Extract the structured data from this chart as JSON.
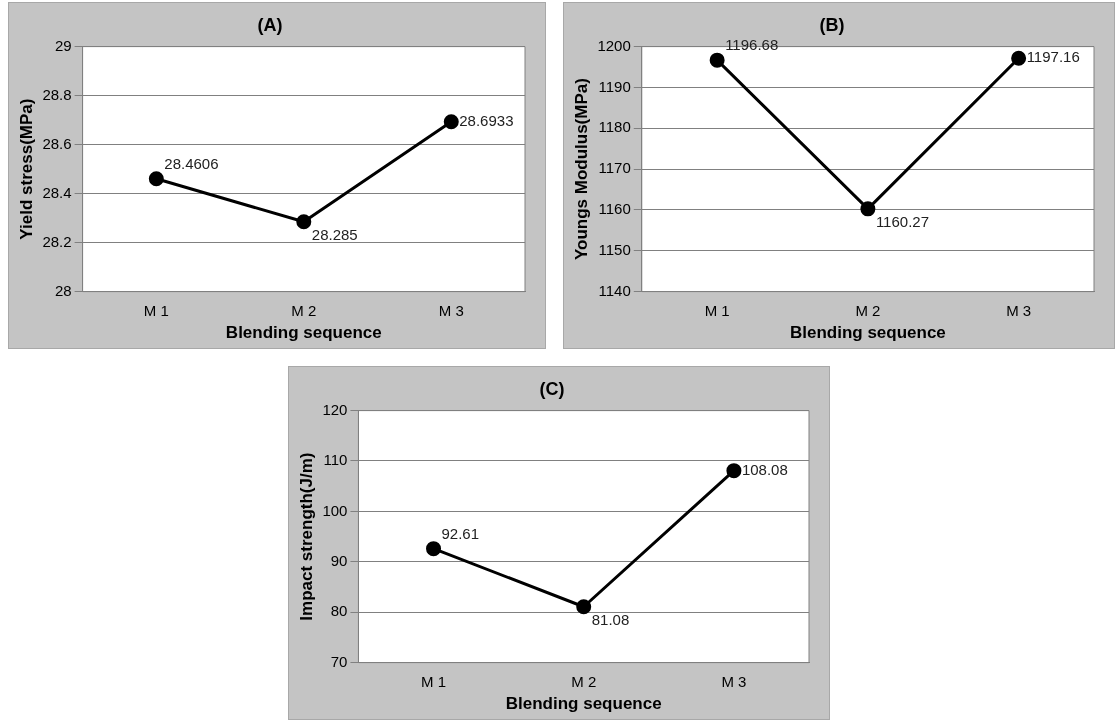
{
  "chart_data": [
    {
      "type": "line",
      "title": "(A)",
      "xlabel": "Blending sequence",
      "ylabel": "Yield stress(MPa)",
      "categories": [
        "M 1",
        "M 2",
        "M 3"
      ],
      "series": [
        {
          "color": "#000000",
          "values": [
            28.4606,
            28.285,
            28.6933
          ]
        }
      ],
      "ylim": [
        28,
        29
      ],
      "yticks": [
        28,
        28.2,
        28.4,
        28.6,
        28.8,
        29
      ],
      "grid": "y",
      "marker": "circle",
      "data_labels": true
    },
    {
      "type": "line",
      "title": "(B)",
      "xlabel": "Blending sequence",
      "ylabel": "Youngs Modulus(MPa)",
      "categories": [
        "M 1",
        "M 2",
        "M 3"
      ],
      "series": [
        {
          "color": "#000000",
          "values": [
            1196.68,
            1160.27,
            1197.16
          ]
        }
      ],
      "ylim": [
        1140,
        1200
      ],
      "yticks": [
        1140,
        1150,
        1160,
        1170,
        1180,
        1190,
        1200
      ],
      "grid": "y",
      "marker": "circle",
      "data_labels": true
    },
    {
      "type": "line",
      "title": "(C)",
      "xlabel": "Blending sequence",
      "ylabel": "Impact strength(J/m)",
      "categories": [
        "M 1",
        "M 2",
        "M 3"
      ],
      "series": [
        {
          "color": "#000000",
          "values": [
            92.61,
            81.08,
            108.08
          ]
        }
      ],
      "ylim": [
        70,
        120
      ],
      "yticks": [
        70,
        80,
        90,
        100,
        110,
        120
      ],
      "grid": "y",
      "marker": "circle",
      "data_labels": true
    }
  ]
}
